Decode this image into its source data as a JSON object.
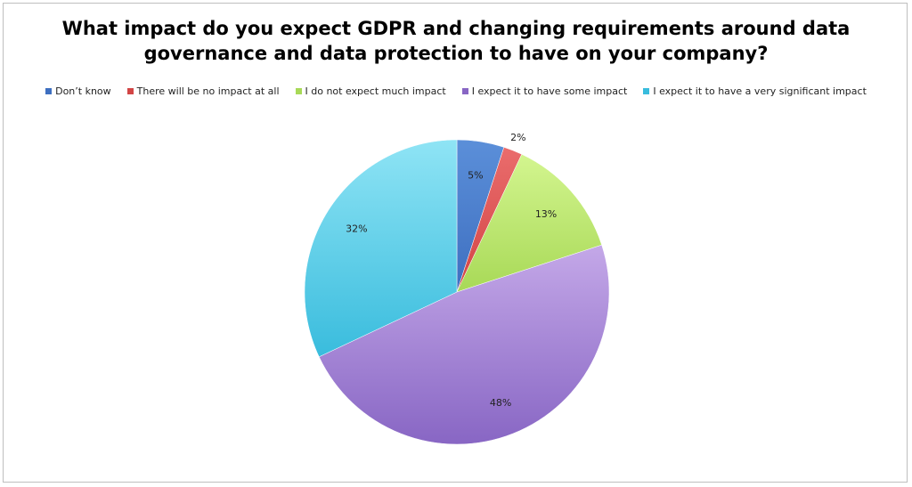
{
  "chart_data": {
    "type": "pie",
    "title_lines": [
      "What impact do you expect GDPR and changing requirements around data",
      "governance and data protection to have on your company?"
    ],
    "legend_position": "top",
    "slices": [
      {
        "label": "Don’t know",
        "value": 5,
        "value_label": "5%",
        "color": "#5b8fd9",
        "color_dark": "#3e6fc0"
      },
      {
        "label": "There will be no impact at all",
        "value": 2,
        "value_label": "2%",
        "color": "#ea6c6c",
        "color_dark": "#d24545"
      },
      {
        "label": "I do not expect much impact",
        "value": 13,
        "value_label": "13%",
        "color": "#d3f58f",
        "color_dark": "#a8d957"
      },
      {
        "label": "I expect it to have some impact",
        "value": 48,
        "value_label": "48%",
        "color": "#c4a8e8",
        "color_dark": "#8866c4"
      },
      {
        "label": "I expect it to have a very significant impact",
        "value": 32,
        "value_label": "32%",
        "color": "#8fe4f5",
        "color_dark": "#39bcdd"
      }
    ]
  }
}
